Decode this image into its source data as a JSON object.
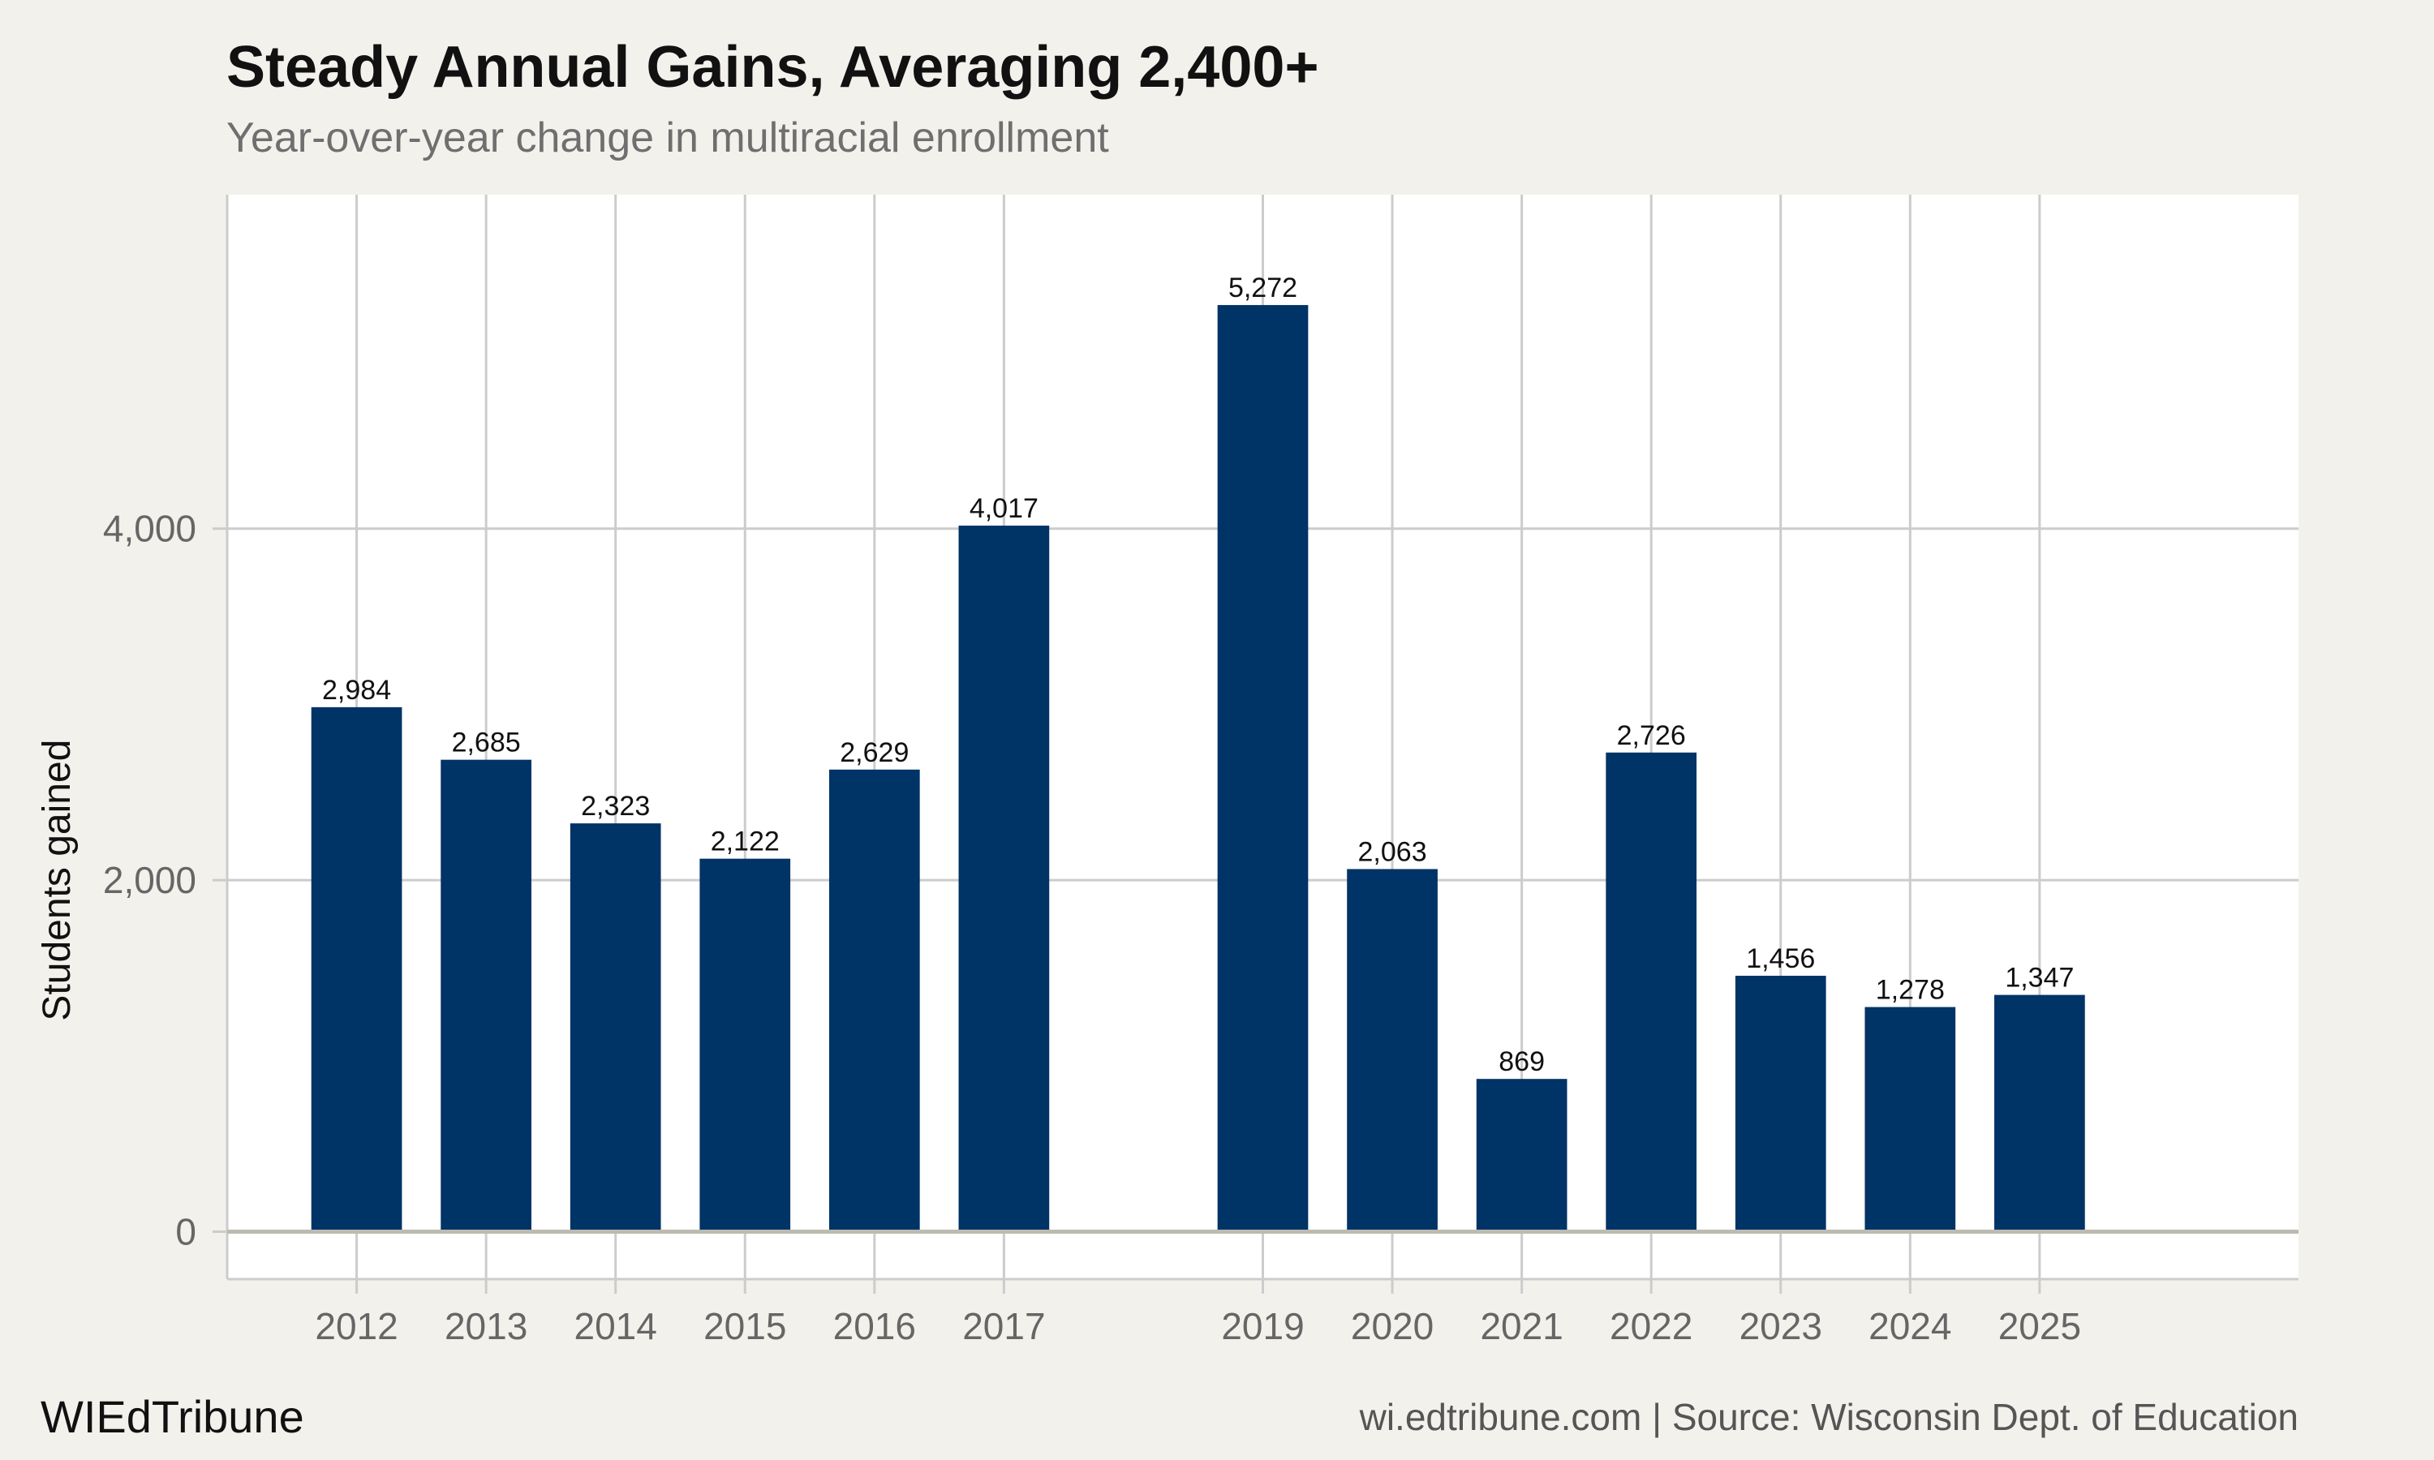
{
  "header": {
    "title": "Steady Annual Gains, Averaging 2,400+",
    "subtitle": "Year-over-year change in multiracial enrollment"
  },
  "footer": {
    "brand": "WIEdTribune",
    "source": "wi.edtribune.com | Source: Wisconsin Dept. of Education"
  },
  "colors": {
    "background": "#f3f1ec",
    "plot_background": "#ffffff",
    "bar": "#003366",
    "grid": "#cccccc",
    "axis_text": "#666666"
  },
  "chart_data": {
    "type": "bar",
    "categories": [
      "2012",
      "2013",
      "2014",
      "2015",
      "2016",
      "2017",
      "2019",
      "2020",
      "2021",
      "2022",
      "2023",
      "2024",
      "2025"
    ],
    "x": [
      2012,
      2013,
      2014,
      2015,
      2016,
      2017,
      2019,
      2020,
      2021,
      2022,
      2023,
      2024,
      2025
    ],
    "values": [
      2984,
      2685,
      2323,
      2122,
      2629,
      4017,
      5272,
      2063,
      869,
      2726,
      1456,
      1278,
      1347
    ],
    "value_labels": [
      "2,984",
      "2,685",
      "2,323",
      "2,122",
      "2,629",
      "4,017",
      "5,272",
      "2,063",
      "869",
      "2,726",
      "1,456",
      "1,278",
      "1,347"
    ],
    "xlim": [
      2011,
      2027
    ],
    "ylim": [
      -270,
      5900
    ],
    "yticks": [
      0,
      2000,
      4000
    ],
    "ytick_labels": [
      "0",
      "2,000",
      "4,000"
    ],
    "xlabel": "",
    "ylabel": "Students gained",
    "grid": true,
    "legend": "none"
  }
}
